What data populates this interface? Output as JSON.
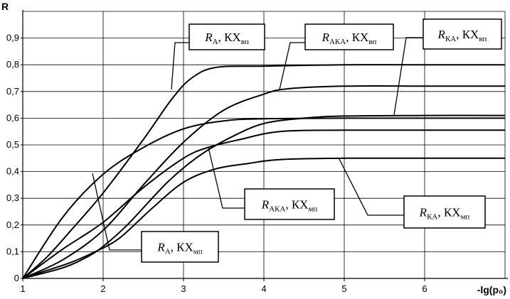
{
  "chart_data": {
    "type": "line",
    "title": "",
    "xlabel": "-lg(p₀)",
    "ylabel": "R",
    "xlim": [
      1,
      7
    ],
    "ylim": [
      0,
      1
    ],
    "x_ticks": [
      "1",
      "2",
      "3",
      "4",
      "5",
      "6"
    ],
    "y_ticks": [
      "0",
      "0,1",
      "0,2",
      "0,3",
      "0,4",
      "0,5",
      "0,6",
      "0,7",
      "0,8",
      "0,9"
    ],
    "grid": true,
    "line_color": "#000000",
    "series": [
      {
        "name": "R_A, KX_вп",
        "label": {
          "main": "R",
          "sub1": "А",
          "rest": ", КХ",
          "sub2": "вп"
        },
        "x": [
          1.0,
          1.3,
          1.6,
          2.0,
          2.5,
          2.85,
          3.1,
          3.4,
          4.0,
          5.0,
          6.0,
          7.0
        ],
        "values": [
          0.0,
          0.08,
          0.18,
          0.32,
          0.52,
          0.67,
          0.75,
          0.79,
          0.795,
          0.8,
          0.8,
          0.8
        ]
      },
      {
        "name": "R_AKA, KX_вп",
        "label": {
          "main": "R",
          "sub1": "АКА",
          "rest": ", КХ",
          "sub2": "вп"
        },
        "x": [
          1.0,
          1.5,
          2.0,
          2.5,
          3.0,
          3.5,
          4.0,
          4.3,
          5.0,
          6.0,
          7.0
        ],
        "values": [
          0.0,
          0.07,
          0.18,
          0.35,
          0.51,
          0.63,
          0.69,
          0.71,
          0.72,
          0.72,
          0.72
        ]
      },
      {
        "name": "R_KA, KX_вп",
        "label": {
          "main": "R",
          "sub1": "КА",
          "rest": ", КХ",
          "sub2": "вп"
        },
        "x": [
          1.0,
          1.5,
          1.8,
          2.0,
          2.3,
          2.8,
          3.2,
          3.6,
          4.0,
          4.5,
          5.0,
          6.0,
          7.0
        ],
        "values": [
          0.0,
          0.04,
          0.08,
          0.12,
          0.2,
          0.36,
          0.46,
          0.53,
          0.58,
          0.6,
          0.608,
          0.61,
          0.61
        ]
      },
      {
        "name": "R_A, KX_мп",
        "label": {
          "main": "R",
          "sub1": "А",
          "rest": ", КХ",
          "sub2": "мп"
        },
        "x": [
          1.0,
          1.5,
          2.0,
          2.5,
          3.0,
          3.5,
          4.0,
          5.0,
          6.0,
          7.0
        ],
        "values": [
          0.0,
          0.23,
          0.39,
          0.49,
          0.56,
          0.59,
          0.598,
          0.6,
          0.6,
          0.6
        ]
      },
      {
        "name": "R_AKA, KX_мп",
        "label": {
          "main": "R",
          "sub1": "АКА",
          "rest": ", КХ",
          "sub2": "мп"
        },
        "x": [
          1.0,
          1.5,
          2.0,
          2.5,
          3.0,
          3.3,
          3.7,
          4.2,
          5.0,
          6.0,
          7.0
        ],
        "values": [
          0.0,
          0.11,
          0.21,
          0.34,
          0.45,
          0.49,
          0.52,
          0.55,
          0.555,
          0.555,
          0.555
        ]
      },
      {
        "name": "R_KA, KX_мп",
        "label": {
          "main": "R",
          "sub1": "КА",
          "rest": ", КХ",
          "sub2": "мп"
        },
        "x": [
          1.0,
          1.3,
          1.6,
          1.9,
          2.2,
          2.6,
          3.0,
          3.4,
          3.8,
          4.2,
          5.0,
          6.0,
          7.0
        ],
        "values": [
          0.0,
          0.03,
          0.06,
          0.1,
          0.15,
          0.26,
          0.36,
          0.41,
          0.43,
          0.445,
          0.45,
          0.45,
          0.45
        ]
      }
    ]
  }
}
